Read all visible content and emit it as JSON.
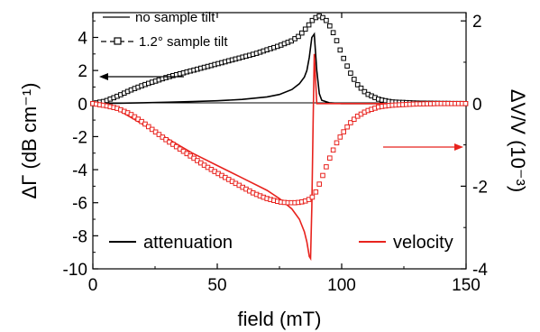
{
  "chart_data": {
    "type": "line",
    "xlabel": "field (mT)",
    "ylabel_left": "ΔΓ (dB cm⁻¹)",
    "ylabel_right": "ΔV/V (10⁻³)",
    "xlim": [
      0,
      150
    ],
    "ylim_left": [
      -10,
      5.5
    ],
    "ylim_right": [
      -4,
      2.2
    ],
    "x_ticks": [
      0,
      50,
      100,
      150
    ],
    "y_left_ticks": [
      -10,
      -8,
      -6,
      -4,
      -2,
      0,
      2,
      4
    ],
    "y_right_ticks": [
      -4,
      -2,
      0,
      2
    ],
    "grid": false,
    "colors": {
      "attenuation": "#000000",
      "velocity": "#e8231e"
    },
    "legend_top": [
      {
        "label": "no sample tilt",
        "style": "line"
      },
      {
        "label": "1.2° sample tilt",
        "style": "dashed-square"
      }
    ],
    "legend_bottom": [
      {
        "label": "attenuation",
        "color": "#000000"
      },
      {
        "label": "velocity",
        "color": "#e8231e"
      }
    ],
    "series": [
      {
        "name": "no sample tilt",
        "quantity": "attenuation",
        "axis": "left",
        "x": [
          0,
          10,
          20,
          30,
          40,
          50,
          60,
          70,
          75,
          80,
          83,
          85,
          86,
          87,
          88,
          89,
          90,
          91,
          92,
          95,
          100,
          150
        ],
        "y": [
          0,
          0.02,
          0.05,
          0.08,
          0.12,
          0.17,
          0.25,
          0.4,
          0.55,
          0.85,
          1.2,
          1.6,
          2.0,
          2.8,
          4.0,
          4.2,
          2.0,
          0.6,
          0.2,
          0.05,
          0,
          0
        ]
      },
      {
        "name": "1.2° sample tilt",
        "quantity": "attenuation",
        "axis": "left",
        "x": [
          0,
          5,
          10,
          15,
          20,
          25,
          30,
          35,
          40,
          45,
          50,
          55,
          60,
          65,
          70,
          75,
          80,
          83,
          86,
          88,
          90,
          91,
          92,
          94,
          96,
          98,
          100,
          103,
          106,
          110,
          115,
          120,
          130,
          140,
          150
        ],
        "y": [
          0,
          0.15,
          0.45,
          0.8,
          1.1,
          1.35,
          1.6,
          1.8,
          2.0,
          2.2,
          2.4,
          2.6,
          2.8,
          3.0,
          3.25,
          3.5,
          3.8,
          4.1,
          4.6,
          5.0,
          5.25,
          5.3,
          5.25,
          5.0,
          4.5,
          3.8,
          3.0,
          2.0,
          1.2,
          0.6,
          0.25,
          0.1,
          0.03,
          0.01,
          0
        ]
      },
      {
        "name": "no sample tilt",
        "quantity": "velocity",
        "axis": "right",
        "x": [
          0,
          5,
          10,
          20,
          30,
          40,
          50,
          60,
          70,
          75,
          80,
          83,
          85,
          86,
          87,
          87.5,
          88,
          88.5,
          89,
          89.5,
          90,
          95,
          100,
          150
        ],
        "y": [
          0,
          -0.05,
          -0.15,
          -0.5,
          -0.85,
          -1.2,
          -1.5,
          -1.8,
          -2.1,
          -2.3,
          -2.55,
          -2.8,
          -3.1,
          -3.35,
          -3.7,
          -3.75,
          -2.5,
          -0.5,
          1.2,
          0.6,
          0,
          0,
          0,
          0
        ]
      },
      {
        "name": "1.2° sample tilt",
        "quantity": "velocity",
        "axis": "right",
        "x": [
          0,
          5,
          10,
          15,
          20,
          25,
          30,
          35,
          40,
          45,
          50,
          55,
          60,
          65,
          70,
          75,
          78,
          80,
          82,
          84,
          86,
          88,
          89,
          90,
          91,
          92,
          94,
          96,
          98,
          100,
          103,
          106,
          110,
          115,
          120,
          130,
          140,
          150
        ],
        "y": [
          0,
          -0.05,
          -0.12,
          -0.25,
          -0.45,
          -0.68,
          -0.9,
          -1.1,
          -1.3,
          -1.5,
          -1.68,
          -1.85,
          -2.02,
          -2.18,
          -2.3,
          -2.38,
          -2.4,
          -2.4,
          -2.4,
          -2.38,
          -2.35,
          -2.28,
          -2.2,
          -2.1,
          -1.95,
          -1.8,
          -1.5,
          -1.2,
          -0.95,
          -0.75,
          -0.5,
          -0.32,
          -0.18,
          -0.08,
          -0.04,
          -0.01,
          0,
          0
        ]
      }
    ]
  }
}
